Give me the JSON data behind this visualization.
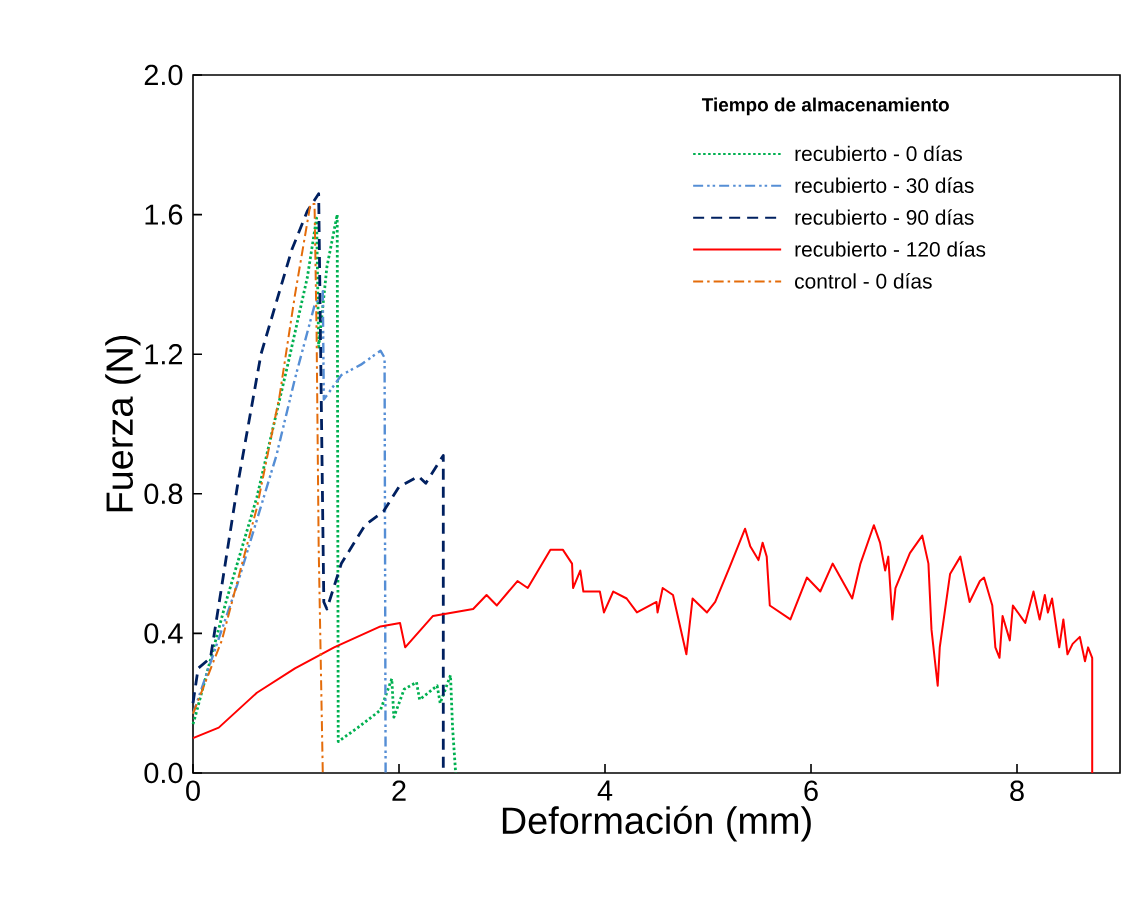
{
  "chart_data": {
    "type": "line",
    "xlabel": "Deformación (mm)",
    "ylabel": "Fuerza (N)",
    "legend_title": "Tiempo de almacenamiento",
    "legend": "top right",
    "xlim": [
      0,
      9
    ],
    "xticks": [
      0,
      2,
      4,
      6,
      8
    ],
    "ylim": [
      0,
      2
    ],
    "yticks": [
      {
        "value": 0,
        "label": "0.0"
      },
      {
        "value": 0.4,
        "label": "0.4"
      },
      {
        "value": 0.8,
        "label": "0.8"
      },
      {
        "value": 1.2,
        "label": "1.2"
      },
      {
        "value": 1.6,
        "label": "1.6"
      },
      {
        "value": 2.0,
        "label": "2.0"
      }
    ],
    "series": [
      {
        "name": "recubierto - 0 días",
        "color": "#00b050",
        "line_style": "dotted",
        "x": [
          0,
          0.02,
          0.32,
          0.62,
          0.92,
          1.11,
          1.2,
          1.22,
          1.3,
          1.4,
          1.41,
          1.6,
          1.82,
          1.93,
          1.95,
          2.05,
          2.17,
          2.2,
          2.37,
          2.4,
          2.5,
          2.52,
          2.55
        ],
        "values": [
          0.14,
          0.16,
          0.49,
          0.79,
          1.17,
          1.42,
          1.59,
          1.22,
          1.45,
          1.6,
          0.09,
          0.13,
          0.18,
          0.27,
          0.16,
          0.24,
          0.26,
          0.21,
          0.25,
          0.2,
          0.28,
          0.13,
          0.0
        ]
      },
      {
        "name": "recubierto - 30 días",
        "color": "#558ed5",
        "line_style": "dashdotdot",
        "x": [
          0,
          0.43,
          0.81,
          0.99,
          1.18,
          1.26,
          1.27,
          1.44,
          1.63,
          1.82,
          1.86,
          1.87
        ],
        "values": [
          0.17,
          0.54,
          0.91,
          1.13,
          1.34,
          1.38,
          1.07,
          1.14,
          1.17,
          1.21,
          1.19,
          0.0
        ]
      },
      {
        "name": "recubierto - 90 días",
        "color": "#002060",
        "line_style": "dashed",
        "x": [
          0,
          0.05,
          0.17,
          0.43,
          0.66,
          0.96,
          1.11,
          1.22,
          1.27,
          1.3,
          1.44,
          1.67,
          1.85,
          2.0,
          2.19,
          2.26,
          2.43,
          2.43
        ],
        "values": [
          0.2,
          0.3,
          0.33,
          0.82,
          1.2,
          1.5,
          1.61,
          1.66,
          0.49,
          0.47,
          0.6,
          0.71,
          0.75,
          0.82,
          0.85,
          0.83,
          0.91,
          0.0
        ]
      },
      {
        "name": "recubierto - 120 días",
        "color": "#ff0000",
        "line_style": "solid",
        "x": [
          0,
          0.25,
          0.62,
          0.99,
          1.37,
          1.82,
          2.01,
          2.06,
          2.33,
          2.72,
          2.85,
          2.95,
          3.15,
          3.25,
          3.47,
          3.59,
          3.68,
          3.69,
          3.76,
          3.79,
          3.95,
          3.99,
          4.08,
          4.21,
          4.31,
          4.5,
          4.51,
          4.56,
          4.66,
          4.79,
          4.85,
          4.99,
          5.07,
          5.21,
          5.36,
          5.41,
          5.49,
          5.53,
          5.57,
          5.6,
          5.7,
          5.8,
          5.96,
          6.09,
          6.21,
          6.4,
          6.48,
          6.61,
          6.67,
          6.72,
          6.75,
          6.79,
          6.82,
          6.96,
          7.08,
          7.14,
          7.17,
          7.23,
          7.25,
          7.35,
          7.45,
          7.54,
          7.64,
          7.68,
          7.76,
          7.79,
          7.83,
          7.86,
          7.93,
          7.96,
          8.08,
          8.16,
          8.22,
          8.27,
          8.3,
          8.34,
          8.41,
          8.45,
          8.49,
          8.54,
          8.61,
          8.66,
          8.69,
          8.73,
          8.73
        ],
        "values": [
          0.1,
          0.13,
          0.23,
          0.3,
          0.36,
          0.42,
          0.43,
          0.36,
          0.45,
          0.47,
          0.51,
          0.48,
          0.55,
          0.53,
          0.64,
          0.64,
          0.6,
          0.53,
          0.58,
          0.52,
          0.52,
          0.46,
          0.52,
          0.5,
          0.46,
          0.49,
          0.46,
          0.53,
          0.51,
          0.34,
          0.5,
          0.46,
          0.49,
          0.59,
          0.7,
          0.65,
          0.61,
          0.66,
          0.62,
          0.48,
          0.46,
          0.44,
          0.56,
          0.52,
          0.6,
          0.5,
          0.6,
          0.71,
          0.66,
          0.58,
          0.62,
          0.44,
          0.53,
          0.63,
          0.68,
          0.6,
          0.41,
          0.25,
          0.36,
          0.57,
          0.62,
          0.49,
          0.55,
          0.56,
          0.48,
          0.36,
          0.33,
          0.45,
          0.38,
          0.48,
          0.43,
          0.52,
          0.44,
          0.51,
          0.46,
          0.5,
          0.36,
          0.44,
          0.34,
          0.37,
          0.39,
          0.32,
          0.36,
          0.33,
          0.0
        ]
      },
      {
        "name": "control - 0 días",
        "color": "#e46c0a",
        "line_style": "dashdot",
        "x": [
          0,
          0.28,
          0.62,
          0.84,
          0.99,
          1.14,
          1.18,
          1.2,
          1.22,
          1.26
        ],
        "values": [
          0.17,
          0.38,
          0.76,
          1.08,
          1.37,
          1.63,
          1.63,
          1.26,
          0.65,
          0.0
        ]
      }
    ]
  }
}
